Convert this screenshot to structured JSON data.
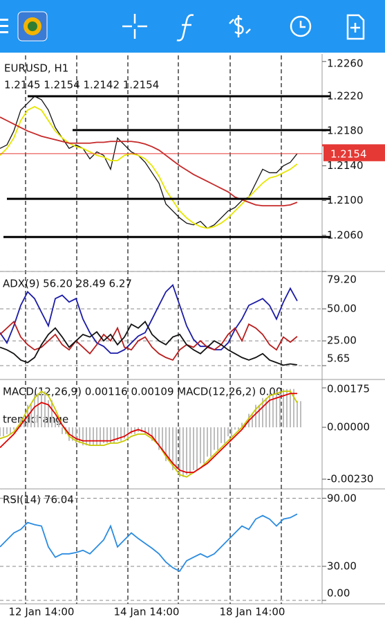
{
  "main": {
    "title": "EURUSD, H1",
    "ohlc": "1.2145 1.2154 1.2142 1.2154",
    "ylim": [
      1.202,
      1.2267
    ],
    "yticks": [
      {
        "value": 1.226,
        "label": "1.2260"
      },
      {
        "value": 1.222,
        "label": "1.2220"
      },
      {
        "value": 1.218,
        "label": "1.2180"
      },
      {
        "value": 1.214,
        "label": "1.2140"
      },
      {
        "value": 1.21,
        "label": "1.2100"
      },
      {
        "value": 1.206,
        "label": "1.2060"
      }
    ],
    "grid": false,
    "bid": 1.2154,
    "bid_label": "1.2154",
    "hlines": [
      1.222,
      1.2181,
      1.2102,
      1.2058
    ],
    "series": [
      {
        "color": "#111111",
        "values": [
          1.216,
          1.2164,
          1.218,
          1.2204,
          1.2212,
          1.222,
          1.2216,
          1.2204,
          1.2184,
          1.2172,
          1.216,
          1.2164,
          1.216,
          1.2148,
          1.2156,
          1.2152,
          1.2136,
          1.2172,
          1.2164,
          1.2156,
          1.2152,
          1.2144,
          1.2132,
          1.212,
          1.2096,
          1.2088,
          1.208,
          1.2074,
          1.2072,
          1.2076,
          1.2068,
          1.2072,
          1.208,
          1.2088,
          1.2092,
          1.21,
          1.2104,
          1.212,
          1.2136,
          1.2132,
          1.2132,
          1.214,
          1.2144,
          1.2154
        ]
      },
      {
        "color": "#e6e600",
        "values": [
          1.2152,
          1.216,
          1.2172,
          1.2192,
          1.2204,
          1.2208,
          1.2204,
          1.2192,
          1.218,
          1.2172,
          1.2166,
          1.2162,
          1.216,
          1.2156,
          1.2152,
          1.215,
          1.2146,
          1.2146,
          1.2152,
          1.2154,
          1.2152,
          1.2148,
          1.214,
          1.2128,
          1.2112,
          1.21,
          1.2088,
          1.208,
          1.2074,
          1.207,
          1.2068,
          1.207,
          1.2074,
          1.208,
          1.2088,
          1.2096,
          1.2104,
          1.2112,
          1.212,
          1.2126,
          1.2128,
          1.2132,
          1.2136,
          1.2142
        ]
      },
      {
        "color": "#c62828",
        "values": [
          1.2196,
          1.2192,
          1.2188,
          1.2184,
          1.218,
          1.2177,
          1.2174,
          1.2172,
          1.217,
          1.2168,
          1.2166,
          1.2166,
          1.2166,
          1.2166,
          1.2167,
          1.2167,
          1.2168,
          1.2168,
          1.2168,
          1.2168,
          1.2167,
          1.2165,
          1.2162,
          1.2158,
          1.2152,
          1.2146,
          1.214,
          1.2135,
          1.213,
          1.2126,
          1.2122,
          1.2118,
          1.2114,
          1.211,
          1.2104,
          1.2101,
          1.2098,
          1.2095,
          1.2094,
          1.2094,
          1.2094,
          1.2094,
          1.2095,
          1.2098
        ]
      }
    ]
  },
  "adx": {
    "title": "ADX(9) 56.20 28.49 6.27",
    "ylim": [
      5.65,
      79.2
    ],
    "yticks": [
      {
        "value": 79.2,
        "label": "79.20"
      },
      {
        "value": 50,
        "label": "50.00"
      },
      {
        "value": 25,
        "label": "25.00"
      },
      5.65
    ],
    "grid": true,
    "series": [
      {
        "color": "#1a1aa6",
        "values": [
          31.4,
          23.4,
          36.7,
          52.7,
          63.3,
          58.0,
          47.3,
          36.7,
          58.0,
          60.6,
          55.3,
          58.0,
          42.0,
          31.4,
          23.4,
          20.7,
          15.4,
          15.4,
          18.1,
          23.4,
          28.7,
          31.4,
          42.0,
          52.7,
          63.3,
          68.6,
          52.7,
          36.7,
          26.1,
          20.7,
          20.7,
          18.1,
          18.1,
          23.4,
          34.0,
          42.0,
          52.7,
          55.3,
          58.0,
          52.7,
          42.0,
          55.3,
          66.0,
          56.2
        ]
      },
      {
        "color": "#b71c1c",
        "values": [
          30,
          35,
          40,
          28,
          22,
          18,
          20,
          25,
          30,
          22,
          18,
          25,
          20,
          15,
          22,
          30,
          25,
          35,
          20,
          18,
          25,
          28,
          20,
          15,
          12,
          10,
          18,
          22,
          20,
          25,
          20,
          18,
          22,
          30,
          35,
          25,
          38,
          35,
          30,
          22,
          18,
          28,
          24,
          28.49
        ]
      },
      {
        "color": "#111111",
        "values": [
          20,
          18,
          15,
          10,
          8,
          12,
          22,
          30,
          35,
          28,
          20,
          25,
          30,
          28,
          32,
          25,
          30,
          22,
          28,
          38,
          35,
          40,
          30,
          25,
          22,
          28,
          30,
          22,
          18,
          15,
          20,
          25,
          22,
          18,
          15,
          12,
          10,
          12,
          15,
          10,
          8,
          6,
          7,
          6.27
        ]
      }
    ]
  },
  "macd": {
    "title": "MACD(12,26,9) 0.00116 0.00109 MACD(12,26,2) 0.00",
    "subtitle": "trendchange",
    "ylim": [
      -0.0027,
      0.00206
    ],
    "yticks": [
      {
        "value": 0.00175,
        "label": "0.00175"
      },
      {
        "value": 0,
        "label": "0.00000"
      },
      {
        "value": -0.0023,
        "label": "-0.00230"
      }
    ],
    "grid": false,
    "histogram": {
      "color": "#bdbdbd",
      "values": [
        -0.0004,
        -0.0003,
        -0.0001,
        0.0004,
        0.001,
        0.0015,
        0.0016,
        0.0012,
        0.0004,
        -0.0003,
        -0.0006,
        -0.0007,
        -0.0008,
        -0.0008,
        -0.0008,
        -0.0007,
        -0.0007,
        -0.0006,
        -0.0005,
        -0.0003,
        -0.0002,
        -0.0003,
        -0.0006,
        -0.001,
        -0.0015,
        -0.0019,
        -0.0022,
        -0.0021,
        -0.0019,
        -0.0016,
        -0.0013,
        -0.001,
        -0.0007,
        -0.0004,
        -0.0001,
        0.0002,
        0.0006,
        0.001,
        0.0013,
        0.0015,
        0.0016,
        0.0017,
        0.0017,
        0.00116
      ]
    },
    "series": [
      {
        "color": "#c8c800",
        "values": [
          -0.0005,
          -0.0004,
          -0.0002,
          0.0002,
          0.0008,
          0.0013,
          0.0016,
          0.0014,
          0.0008,
          0.0001,
          -0.0004,
          -0.0006,
          -0.0007,
          -0.0008,
          -0.0008,
          -0.0008,
          -0.0007,
          -0.0007,
          -0.0006,
          -0.0004,
          -0.0003,
          -0.0003,
          -0.0005,
          -0.0008,
          -0.0013,
          -0.0017,
          -0.0021,
          -0.0022,
          -0.002,
          -0.0018,
          -0.0015,
          -0.0012,
          -0.0009,
          -0.0006,
          -0.0003,
          0.0,
          0.0004,
          0.0008,
          0.0011,
          0.0014,
          0.0015,
          0.0016,
          0.0016,
          0.00109
        ]
      },
      {
        "color": "#e00000",
        "values": [
          -0.0009,
          -0.0006,
          -0.0003,
          0.0001,
          0.0005,
          0.0009,
          0.0011,
          0.001,
          0.0006,
          0.0001,
          -0.0003,
          -0.0005,
          -0.0006,
          -0.0006,
          -0.0006,
          -0.0006,
          -0.0006,
          -0.0005,
          -0.0004,
          -0.0002,
          -0.0001,
          -0.0002,
          -0.0004,
          -0.0008,
          -0.0012,
          -0.0016,
          -0.0019,
          -0.002,
          -0.002,
          -0.0018,
          -0.0016,
          -0.0013,
          -0.001,
          -0.0007,
          -0.0004,
          -0.0001,
          0.0003,
          0.0006,
          0.0009,
          0.0012,
          0.0013,
          0.0014,
          0.0015,
          0.0015
        ]
      }
    ]
  },
  "rsi": {
    "title": "RSI(14) 76.04",
    "ylim": [
      0,
      97
    ],
    "yticks": [
      {
        "value": 90,
        "label": "90.00"
      },
      {
        "value": 30,
        "label": "30.00"
      },
      {
        "value": 0,
        "label": "0.00"
      }
    ],
    "grid": true,
    "series": [
      {
        "color": "#2a8be0",
        "values": [
          47.1,
          53.3,
          59.4,
          62.5,
          68.6,
          66.7,
          65.5,
          47.1,
          38.0,
          41.0,
          41.0,
          42.2,
          44.1,
          41.0,
          47.1,
          53.3,
          65.5,
          47.1,
          53.3,
          59.4,
          54.5,
          50.2,
          45.9,
          41.0,
          33.7,
          28.8,
          25.7,
          34.9,
          38.0,
          41.0,
          38.0,
          41.0,
          47.1,
          53.3,
          59.4,
          65.5,
          62.5,
          71.6,
          74.7,
          71.6,
          65.5,
          71.6,
          72.9,
          76.04
        ]
      }
    ]
  },
  "xaxis": {
    "labels": [
      "12 Jan 14:00",
      "14 Jan 14:00",
      "18 Jan 14:00"
    ]
  }
}
